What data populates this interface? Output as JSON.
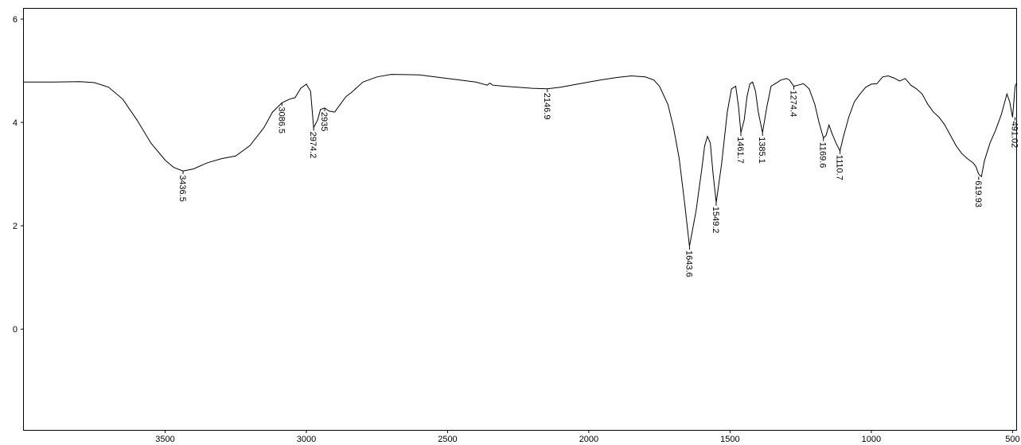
{
  "chart_data": {
    "type": "line",
    "title": "",
    "xlabel": "",
    "ylabel": "",
    "x_reversed": true,
    "xlim": [
      4000,
      487
    ],
    "ylim": [
      -1.95,
      6.2
    ],
    "x_ticks": [
      {
        "value": 3500,
        "label": "3500"
      },
      {
        "value": 3000,
        "label": "3000"
      },
      {
        "value": 2500,
        "label": "2500"
      },
      {
        "value": 2000,
        "label": "2000"
      },
      {
        "value": 1500,
        "label": "1500"
      },
      {
        "value": 1000,
        "label": "1000"
      },
      {
        "value": 500,
        "label": "500"
      }
    ],
    "y_ticks": [
      {
        "value": 6,
        "label": "6"
      },
      {
        "value": 4,
        "label": "4"
      },
      {
        "value": 2,
        "label": "2"
      },
      {
        "value": 0,
        "label": "0"
      }
    ],
    "grid": false,
    "legend": "none",
    "series": [
      {
        "x": [
          4000,
          3900,
          3800,
          3750,
          3700,
          3650,
          3600,
          3550,
          3500,
          3470,
          3436.5,
          3400,
          3350,
          3300,
          3250,
          3200,
          3150,
          3120,
          3086.5,
          3060,
          3040,
          3020,
          3000,
          2985,
          2974.2,
          2960,
          2950,
          2935,
          2920,
          2900,
          2880,
          2860,
          2840,
          2800,
          2750,
          2700,
          2600,
          2500,
          2400,
          2360,
          2350,
          2340,
          2300,
          2200,
          2146.9,
          2100,
          2000,
          1950,
          1900,
          1850,
          1800,
          1770,
          1750,
          1720,
          1700,
          1680,
          1660,
          1643.6,
          1620,
          1600,
          1590,
          1580,
          1570,
          1560,
          1549.2,
          1530,
          1510,
          1495,
          1480,
          1470,
          1461.7,
          1450,
          1440,
          1430,
          1420,
          1410,
          1400,
          1385.1,
          1370,
          1355,
          1340,
          1320,
          1300,
          1290,
          1274.4,
          1260,
          1240,
          1220,
          1200,
          1185,
          1169.6,
          1160,
          1150,
          1140,
          1125,
          1110.7,
          1100,
          1080,
          1060,
          1040,
          1020,
          1000,
          980,
          960,
          940,
          920,
          900,
          880,
          860,
          840,
          820,
          800,
          780,
          760,
          740,
          720,
          700,
          680,
          660,
          640,
          630,
          619.93,
          610,
          600,
          580,
          560,
          540,
          520,
          510,
          500,
          491.02,
          487
        ],
        "y": [
          4.78,
          4.78,
          4.79,
          4.77,
          4.68,
          4.45,
          4.05,
          3.6,
          3.27,
          3.13,
          3.06,
          3.1,
          3.22,
          3.3,
          3.35,
          3.55,
          3.9,
          4.2,
          4.38,
          4.45,
          4.48,
          4.66,
          4.74,
          4.6,
          3.9,
          4.05,
          4.25,
          4.28,
          4.22,
          4.2,
          4.35,
          4.5,
          4.58,
          4.78,
          4.88,
          4.93,
          4.92,
          4.85,
          4.78,
          4.72,
          4.76,
          4.72,
          4.7,
          4.66,
          4.65,
          4.68,
          4.78,
          4.83,
          4.87,
          4.9,
          4.88,
          4.82,
          4.7,
          4.35,
          3.9,
          3.3,
          2.4,
          1.6,
          2.3,
          3.1,
          3.55,
          3.73,
          3.6,
          3.0,
          2.45,
          3.2,
          4.2,
          4.65,
          4.7,
          4.3,
          3.8,
          4.05,
          4.5,
          4.75,
          4.78,
          4.6,
          4.2,
          3.8,
          4.3,
          4.7,
          4.75,
          4.82,
          4.85,
          4.82,
          4.7,
          4.72,
          4.75,
          4.65,
          4.35,
          4.0,
          3.7,
          3.75,
          3.95,
          3.8,
          3.6,
          3.45,
          3.7,
          4.1,
          4.4,
          4.55,
          4.68,
          4.74,
          4.75,
          4.88,
          4.9,
          4.86,
          4.8,
          4.85,
          4.72,
          4.65,
          4.55,
          4.35,
          4.2,
          4.1,
          3.95,
          3.75,
          3.55,
          3.4,
          3.3,
          3.22,
          3.15,
          3.0,
          2.95,
          3.25,
          3.6,
          3.85,
          4.15,
          4.55,
          4.4,
          4.1,
          4.7,
          4.75
        ]
      }
    ],
    "annotations": [
      {
        "x": 3436.5,
        "y": 3.06,
        "label": "3436.5"
      },
      {
        "x": 3086.5,
        "y": 4.38,
        "label": "3086.5"
      },
      {
        "x": 2974.2,
        "y": 3.9,
        "label": "2974.2"
      },
      {
        "x": 2935,
        "y": 4.28,
        "label": "2935"
      },
      {
        "x": 2146.9,
        "y": 4.65,
        "label": "2146.9"
      },
      {
        "x": 1643.6,
        "y": 1.6,
        "label": "1643.6"
      },
      {
        "x": 1549.2,
        "y": 2.45,
        "label": "1549.2"
      },
      {
        "x": 1461.7,
        "y": 3.8,
        "label": "1461.7"
      },
      {
        "x": 1385.1,
        "y": 3.8,
        "label": "1385.1"
      },
      {
        "x": 1274.4,
        "y": 4.7,
        "label": "1274.4"
      },
      {
        "x": 1169.6,
        "y": 3.7,
        "label": "1169.6"
      },
      {
        "x": 1110.7,
        "y": 3.45,
        "label": "1110.7"
      },
      {
        "x": 619.93,
        "y": 2.95,
        "label": "619.93"
      },
      {
        "x": 491.02,
        "y": 4.1,
        "label": "491.02"
      }
    ],
    "line_color": "#000000"
  }
}
